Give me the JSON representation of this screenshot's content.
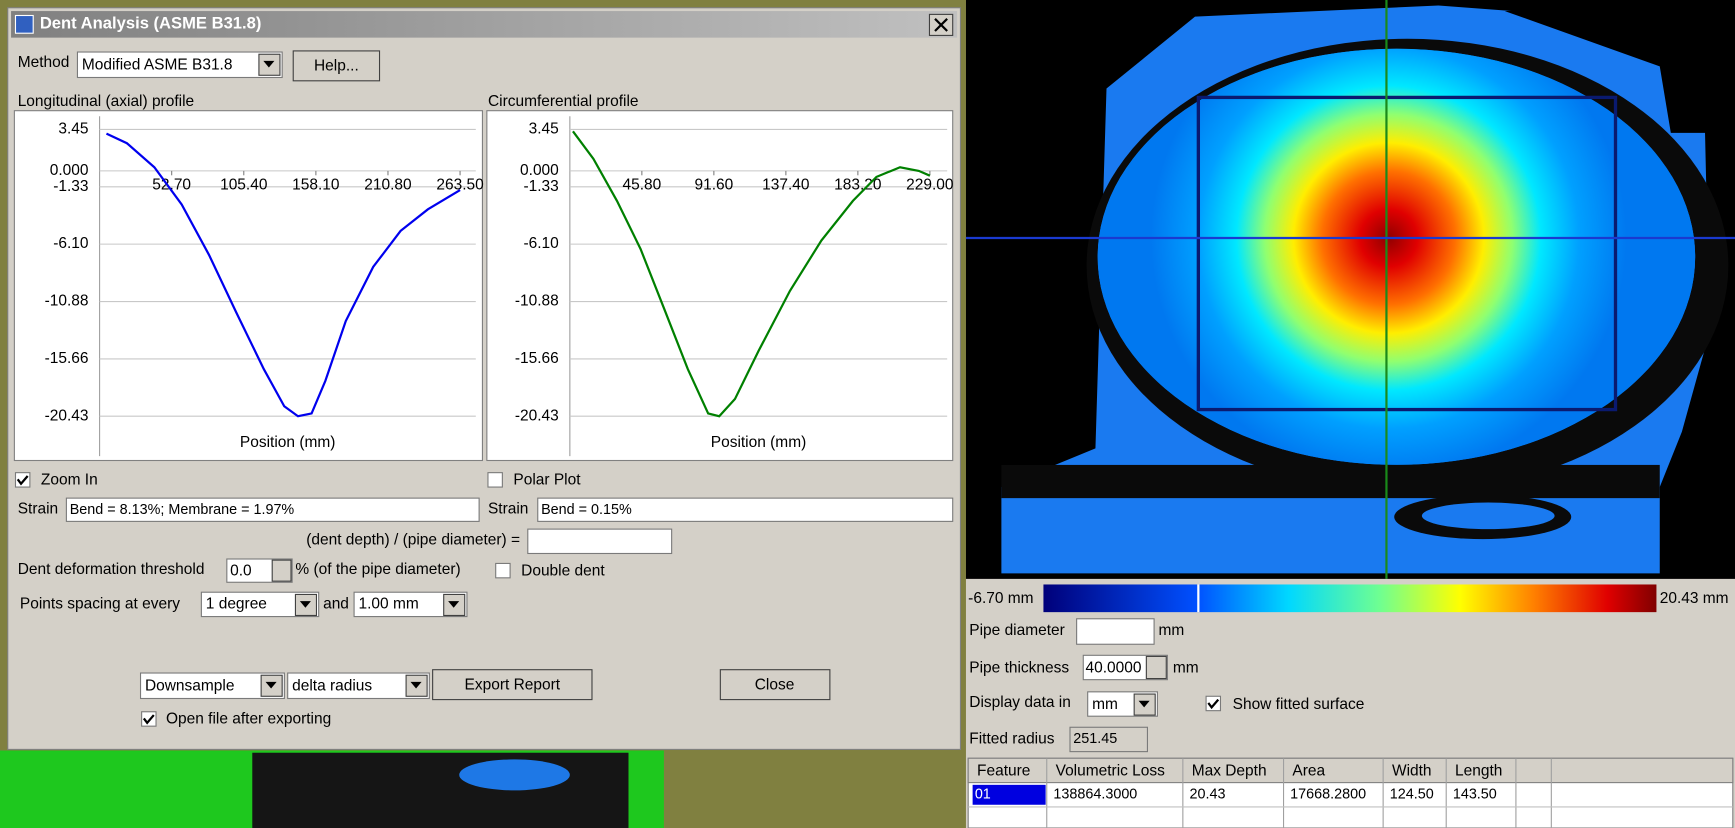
{
  "dialog": {
    "title": "Dent Analysis (ASME B31.8)",
    "method_label": "Method",
    "method_value": "Modified ASME B31.8",
    "help_button": "Help...",
    "zoom_in": {
      "label": "Zoom In",
      "checked": true
    },
    "polar_plot": {
      "label": "Polar Plot",
      "checked": false
    },
    "strain_long": {
      "label": "Strain",
      "value": "Bend = 8.13%; Membrane = 1.97%"
    },
    "strain_circ": {
      "label": "Strain",
      "value": "Bend = 0.15%"
    },
    "ratio_label": "(dent depth) / (pipe diameter) =",
    "threshold_label": "Dent deformation threshold",
    "threshold_value": "0.0",
    "threshold_unit": "% (of the pipe diameter)",
    "double_dent": {
      "label": "Double dent",
      "checked": false
    },
    "spacing_label": "Points spacing at every",
    "spacing_angle": "1 degree",
    "spacing_and": "and",
    "spacing_length": "1.00 mm",
    "export_mode": "Downsample",
    "export_quantity": "delta radius",
    "export_button": "Export Report",
    "close_button": "Close",
    "open_after_export": {
      "label": "Open file after exporting",
      "checked": true
    }
  },
  "viewer": {
    "scale_min": "-6.70 mm",
    "scale_max": "20.43 mm",
    "pipe_diameter_label": "Pipe diameter",
    "pipe_diameter_unit": "mm",
    "pipe_thickness_label": "Pipe thickness",
    "pipe_thickness_value": "40.0000",
    "pipe_thickness_unit": "mm",
    "display_label": "Display data in",
    "display_unit": "mm",
    "show_fitted": {
      "label": "Show fitted surface",
      "checked": true
    },
    "fitted_radius_label": "Fitted radius",
    "fitted_radius_value": "251.45"
  },
  "table": {
    "headers": [
      "Feature",
      "Volumetric Loss",
      "Max Depth",
      "Area",
      "Width",
      "Length"
    ],
    "rows": [
      [
        "01",
        "138864.3000",
        "20.43",
        "17668.2800",
        "124.50",
        "143.50"
      ]
    ]
  },
  "chart_data": [
    {
      "type": "line",
      "title": "Longitudinal (axial) profile",
      "x_label": "Position (mm)",
      "color": "#0000ee",
      "x": [
        5,
        20,
        40,
        60,
        80,
        100,
        120,
        135,
        145,
        155,
        165,
        180,
        200,
        220,
        240,
        263.5
      ],
      "values": [
        3.1,
        2.3,
        0.3,
        -2.8,
        -7,
        -11.8,
        -16.5,
        -19.6,
        -20.43,
        -20.2,
        -17.5,
        -12.5,
        -8.0,
        -5.0,
        -3.2,
        -1.6
      ],
      "xlim": [
        0,
        275
      ],
      "ylim": [
        -23.75,
        4.55
      ],
      "xticks": [
        {
          "value": 52.7,
          "label": "52.70"
        },
        {
          "value": 105.4,
          "label": "105.40"
        },
        {
          "value": 158.1,
          "label": "158.10"
        },
        {
          "value": 210.8,
          "label": "210.80"
        },
        {
          "value": 263.5,
          "label": "263.50"
        }
      ],
      "yticks": [
        3.45,
        {
          "value": 0,
          "label": "0.000"
        },
        -1.33,
        {
          "value": -6.1,
          "label": "-6.10"
        },
        -10.88,
        -15.66,
        -20.43
      ],
      "grid": true
    },
    {
      "type": "line",
      "title": "Circumferential profile",
      "x_label": "Position (mm)",
      "color": "#008000",
      "x": [
        2,
        15,
        30,
        45,
        60,
        75,
        88,
        95,
        105,
        120,
        140,
        160,
        180,
        195,
        210,
        222,
        229
      ],
      "values": [
        3.3,
        1,
        -2.5,
        -6.5,
        -11.5,
        -16.5,
        -20.2,
        -20.43,
        -19,
        -15,
        -10,
        -5.8,
        -2.5,
        -0.5,
        0.3,
        0,
        -0.4
      ],
      "xlim": [
        0,
        240
      ],
      "ylim": [
        -23.75,
        4.55
      ],
      "xticks": [
        {
          "value": 45.8,
          "label": "45.80"
        },
        {
          "value": 91.6,
          "label": "91.60"
        },
        {
          "value": 137.4,
          "label": "137.40"
        },
        {
          "value": 183.2,
          "label": "183.20"
        },
        {
          "value": 229,
          "label": "229.00"
        }
      ],
      "yticks": [
        3.45,
        {
          "value": 0,
          "label": "0.000"
        },
        -1.33,
        {
          "value": -6.1,
          "label": "-6.10"
        },
        -10.88,
        -15.66,
        -20.43
      ],
      "grid": true
    }
  ]
}
